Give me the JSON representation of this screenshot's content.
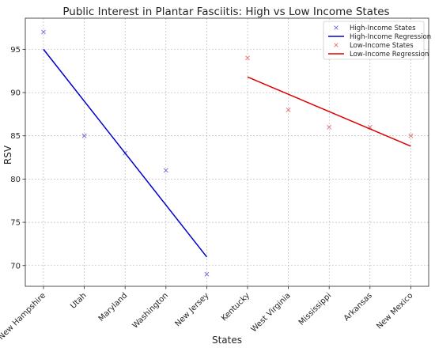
{
  "chart_data": {
    "type": "scatter",
    "title": "Public Interest in Plantar Fasciitis: High vs Low Income States",
    "xlabel": "States",
    "ylabel": "RSV",
    "categories": [
      "New Hampshire",
      "Utah",
      "Maryland",
      "Washington",
      "New Jersey",
      "Kentucky",
      "West Virginia",
      "Mississippi",
      "Arkansas",
      "New Mexico"
    ],
    "yticks": [
      70,
      75,
      80,
      85,
      90,
      95
    ],
    "ylim": [
      67.6,
      98.6
    ],
    "grid": true,
    "legend_position": "top-right",
    "series": [
      {
        "name": "High-Income States",
        "kind": "scatter",
        "marker": "x",
        "color": "#6a6ad6",
        "points": [
          {
            "x": "New Hampshire",
            "y": 97
          },
          {
            "x": "Utah",
            "y": 85
          },
          {
            "x": "Maryland",
            "y": 83
          },
          {
            "x": "Washington",
            "y": 81
          },
          {
            "x": "New Jersey",
            "y": 69
          }
        ]
      },
      {
        "name": "High-Income Regression",
        "kind": "line",
        "color": "#0000cc",
        "points": [
          {
            "x": "New Hampshire",
            "y": 95
          },
          {
            "x": "New Jersey",
            "y": 71
          }
        ]
      },
      {
        "name": "Low-Income States",
        "kind": "scatter",
        "marker": "x",
        "color": "#e07070",
        "points": [
          {
            "x": "Kentucky",
            "y": 94
          },
          {
            "x": "West Virginia",
            "y": 88
          },
          {
            "x": "Mississippi",
            "y": 86
          },
          {
            "x": "Arkansas",
            "y": 86
          },
          {
            "x": "New Mexico",
            "y": 85
          }
        ]
      },
      {
        "name": "Low-Income Regression",
        "kind": "line",
        "color": "#dd0000",
        "points": [
          {
            "x": "Kentucky",
            "y": 91.8
          },
          {
            "x": "New Mexico",
            "y": 83.8
          }
        ]
      }
    ]
  }
}
